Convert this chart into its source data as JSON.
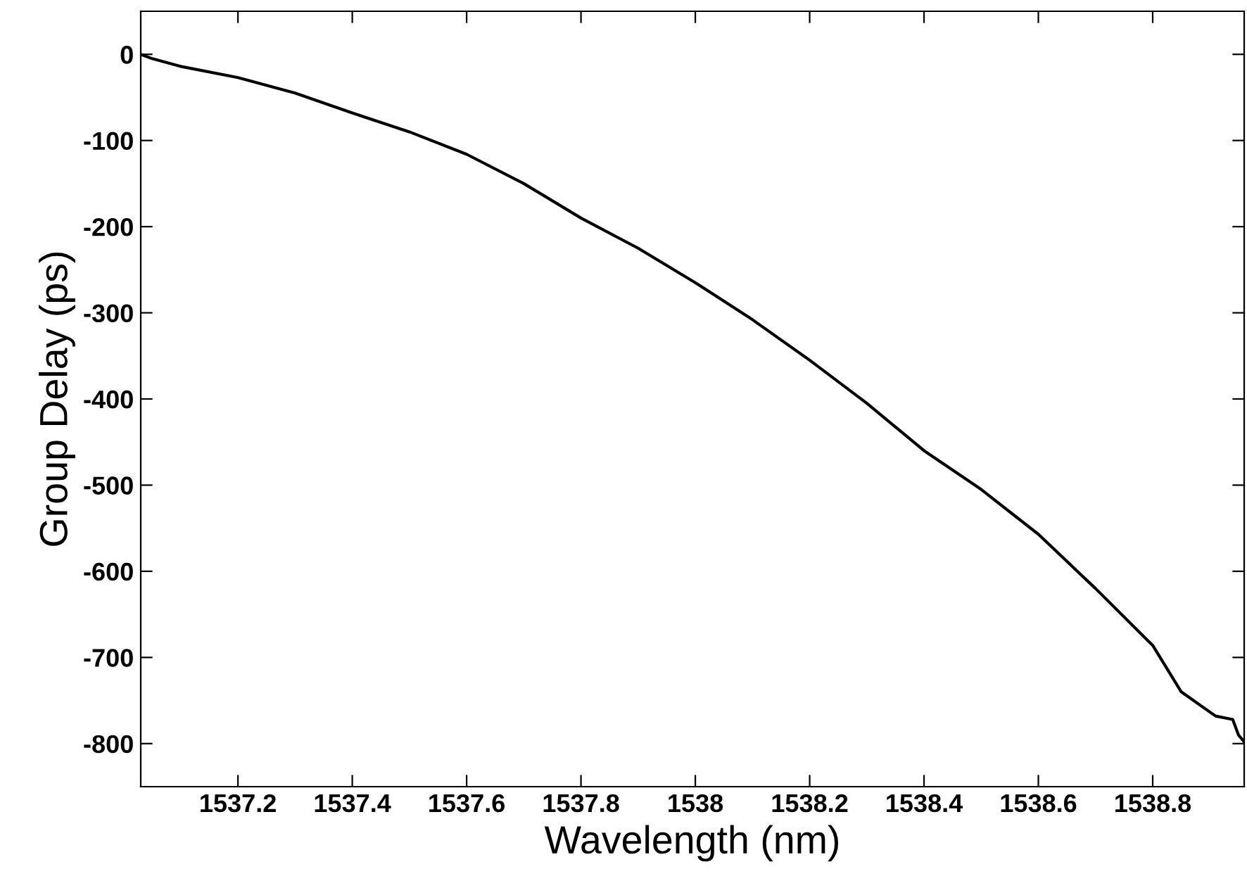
{
  "chart_data": {
    "type": "line",
    "xlabel": "Wavelength (nm)",
    "ylabel": "Group Delay (ps)",
    "xlim": [
      1537.03,
      1538.96
    ],
    "ylim": [
      -850,
      50
    ],
    "xticks": [
      1537.2,
      1537.4,
      1537.6,
      1537.8,
      1538,
      1538.2,
      1538.4,
      1538.6,
      1538.8
    ],
    "yticks": [
      0,
      -100,
      -200,
      -300,
      -400,
      -500,
      -600,
      -700,
      -800
    ],
    "grid": false,
    "series": [
      {
        "color": "#000000",
        "x": [
          1537.03,
          1537.05,
          1537.1,
          1537.2,
          1537.3,
          1537.4,
          1537.5,
          1537.6,
          1537.7,
          1537.8,
          1537.9,
          1538.0,
          1538.1,
          1538.2,
          1538.3,
          1538.4,
          1538.5,
          1538.6,
          1538.7,
          1538.8,
          1538.85,
          1538.91,
          1538.94,
          1538.95,
          1538.96
        ],
        "values": [
          0,
          -5,
          -14,
          -27,
          -45,
          -68,
          -90,
          -116,
          -150,
          -190,
          -225,
          -265,
          -308,
          -355,
          -405,
          -460,
          -505,
          -557,
          -620,
          -686,
          -740,
          -768,
          -772,
          -790,
          -798
        ]
      }
    ]
  }
}
